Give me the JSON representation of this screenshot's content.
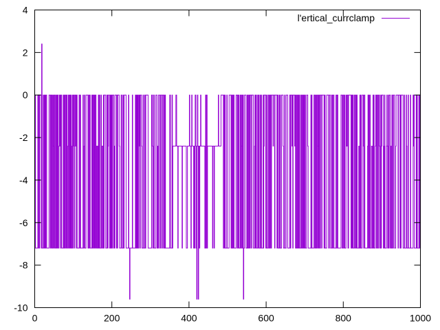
{
  "chart_data": {
    "type": "line",
    "title": "",
    "xlabel": "",
    "ylabel": "",
    "xlim": [
      0,
      1000
    ],
    "ylim": [
      -10,
      4
    ],
    "xticks": [
      0,
      200,
      400,
      600,
      800,
      1000
    ],
    "yticks": [
      4,
      2,
      0,
      -2,
      -4,
      -6,
      -8,
      -10
    ],
    "grid": false,
    "legend_position": "top-right",
    "series": [
      {
        "name": "l'ertical_currclamp",
        "color": "#9400d3",
        "levels": [
          0,
          -2.4,
          -7.2
        ],
        "spikes": [
          {
            "x": 18,
            "y": 2.4
          },
          {
            "x": 246,
            "y": -9.6
          },
          {
            "x": 420,
            "y": -9.6
          },
          {
            "x": 424,
            "y": -9.6
          },
          {
            "x": 541,
            "y": -9.6
          }
        ],
        "flat_segments": [
          {
            "x_start": 358,
            "x_end": 392,
            "y": -2.4
          },
          {
            "x_start": 394,
            "x_end": 440,
            "y": -2.4
          },
          {
            "x_start": 448,
            "x_end": 482,
            "y": -2.4
          }
        ],
        "x_start": 0,
        "x_end": 1000
      }
    ]
  }
}
